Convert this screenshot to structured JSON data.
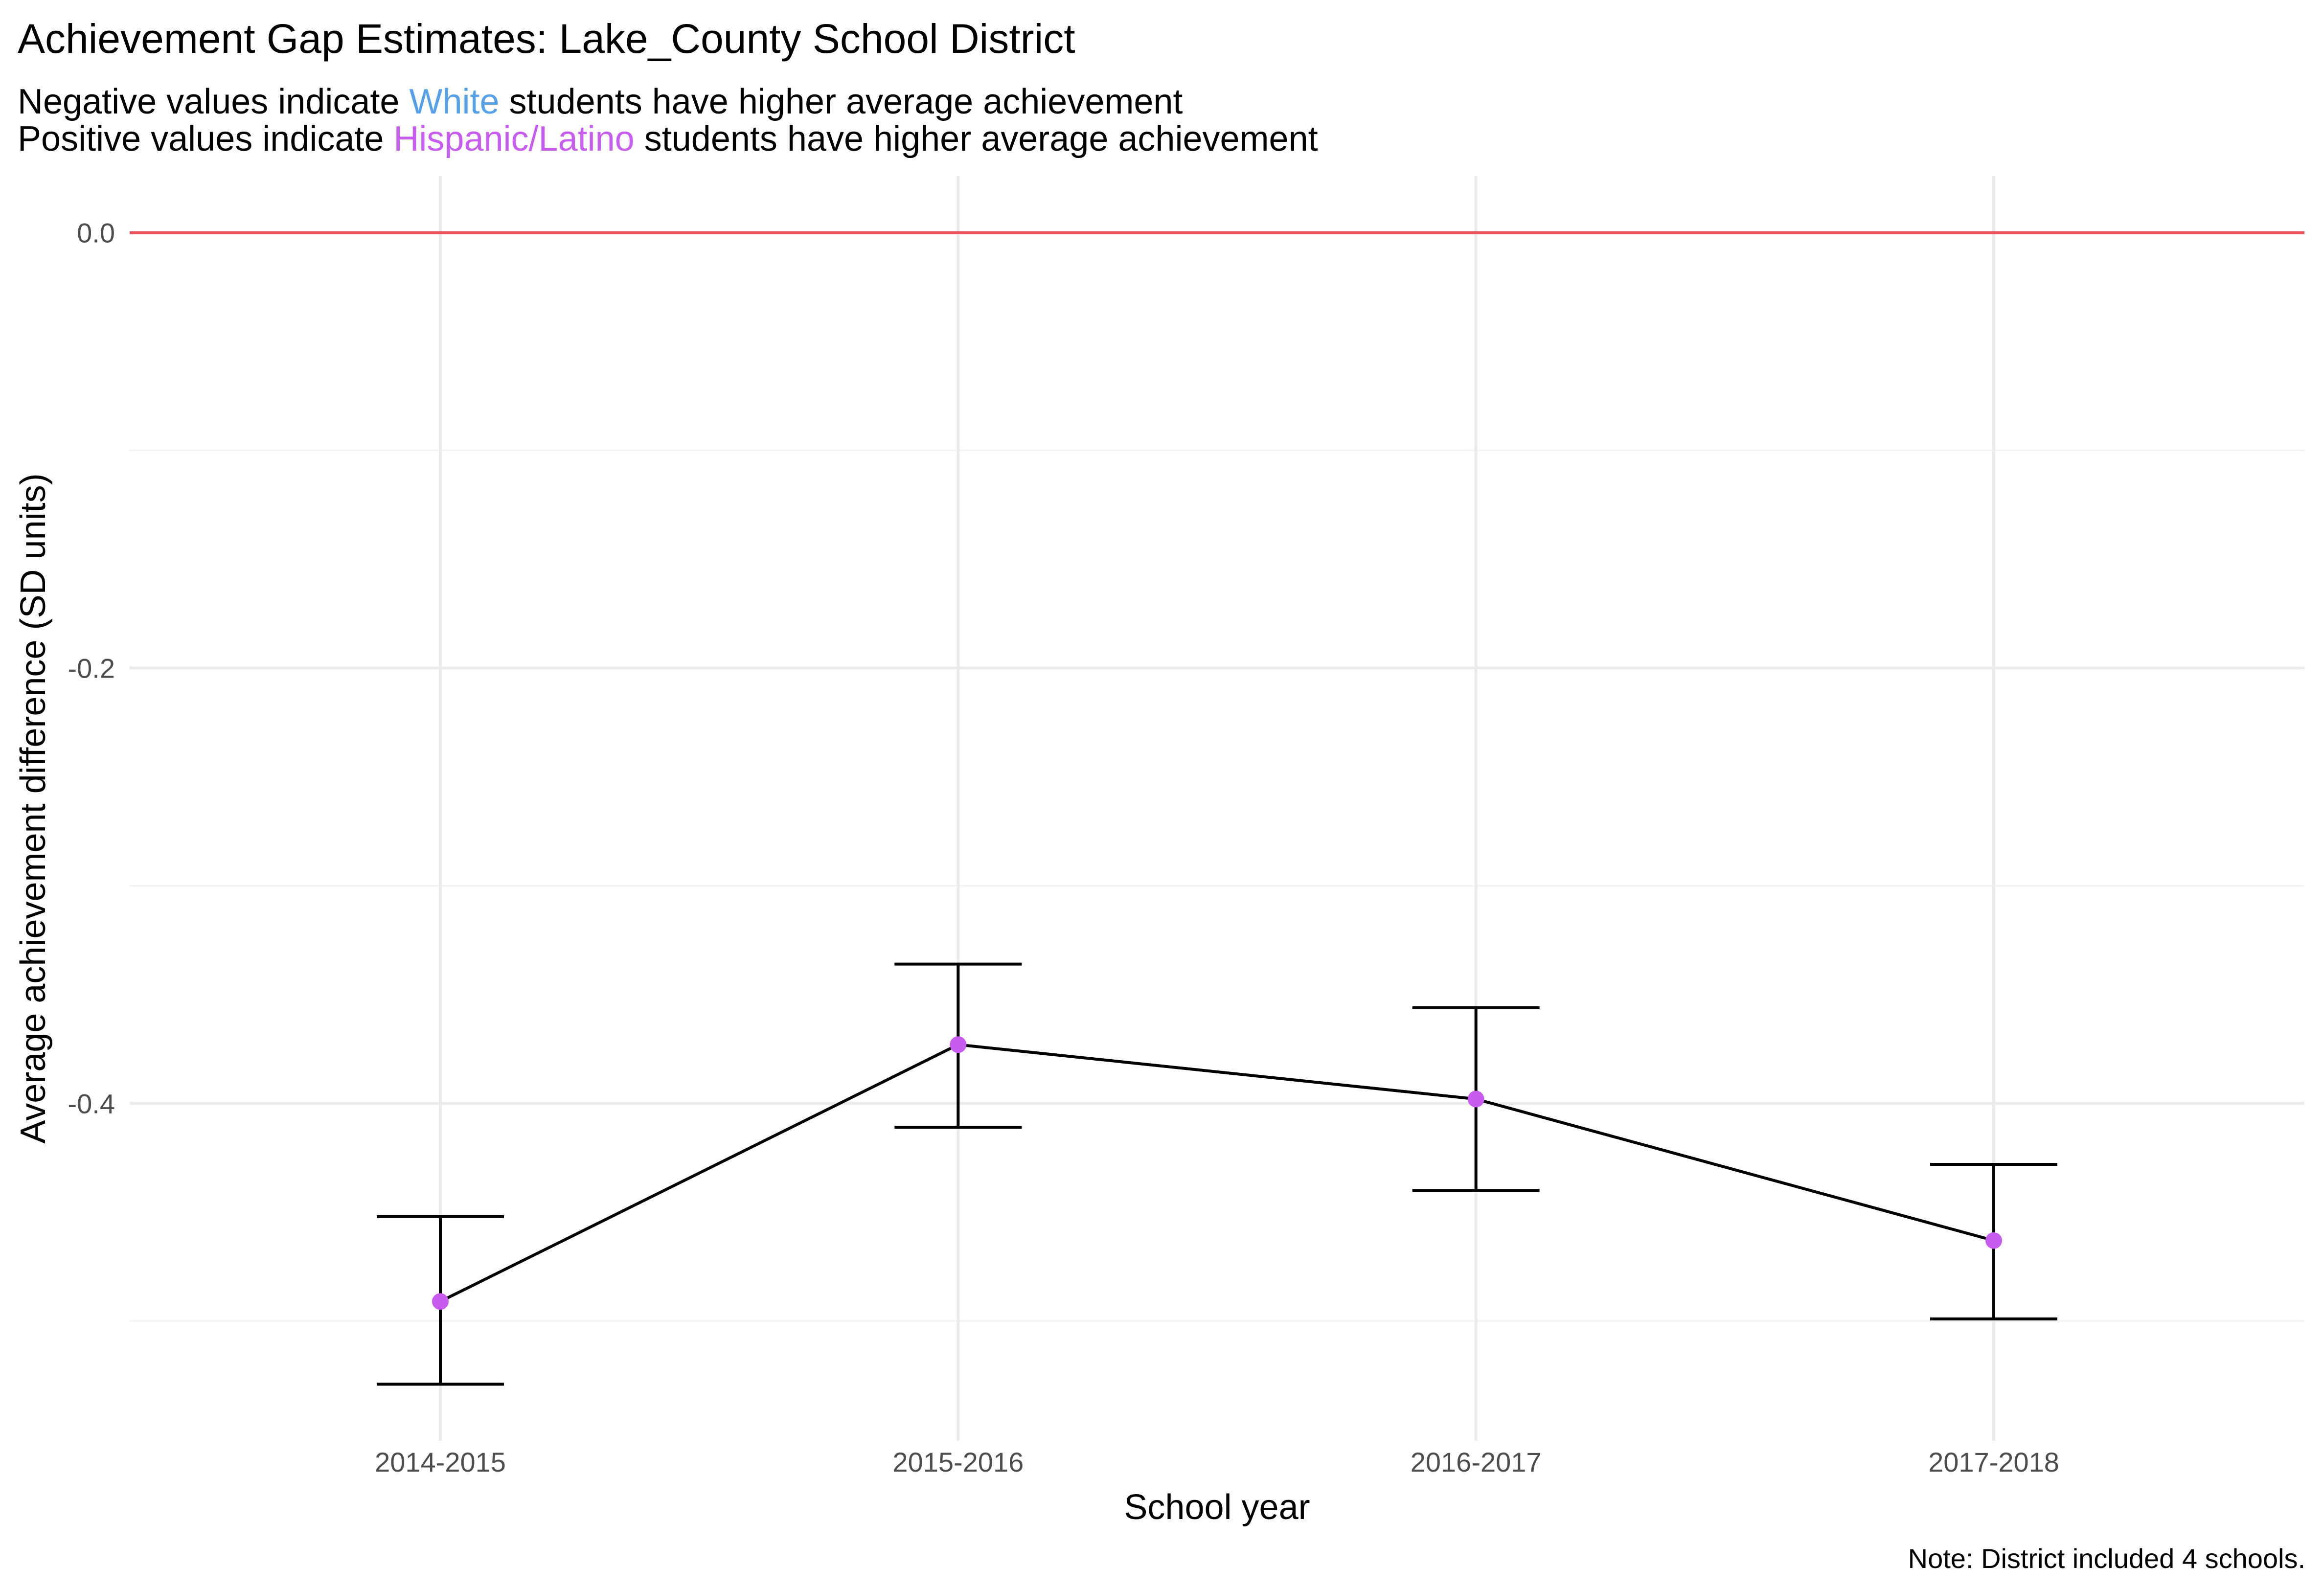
{
  "chart_data": {
    "type": "line",
    "title": "Achievement Gap Estimates: Lake_County School District",
    "subtitle_lines": [
      {
        "before": "Negative values indicate ",
        "highlight": "White",
        "after": " students have higher average achievement",
        "highlight_color": "#56a0ea"
      },
      {
        "before": "Positive values indicate ",
        "highlight": "Hispanic/Latino",
        "after": " students have higher average achievement",
        "highlight_color": "#c85bf0"
      }
    ],
    "xlabel": "School year",
    "ylabel": "Average achievement difference (SD units)",
    "caption": "Note: District included 4 schools.",
    "categories": [
      "2014-2015",
      "2015-2016",
      "2016-2017",
      "2017-2018"
    ],
    "values": [
      -0.491,
      -0.373,
      -0.398,
      -0.463
    ],
    "ci_lower": [
      -0.529,
      -0.411,
      -0.44,
      -0.499
    ],
    "ci_upper": [
      -0.452,
      -0.336,
      -0.356,
      -0.428
    ],
    "ylim": [
      -0.555,
      0.026
    ],
    "yticks": [
      0.0,
      -0.2,
      -0.4
    ],
    "ytick_labels": [
      "0.0",
      "-0.2",
      "-0.4"
    ],
    "yminor_ticks": [
      -0.1,
      -0.3,
      -0.5
    ],
    "reference_line": 0.0,
    "reference_color": "#e8515a",
    "point_color": "#c85bf0",
    "line_color": "#000000",
    "grid": true,
    "legend": "none"
  }
}
